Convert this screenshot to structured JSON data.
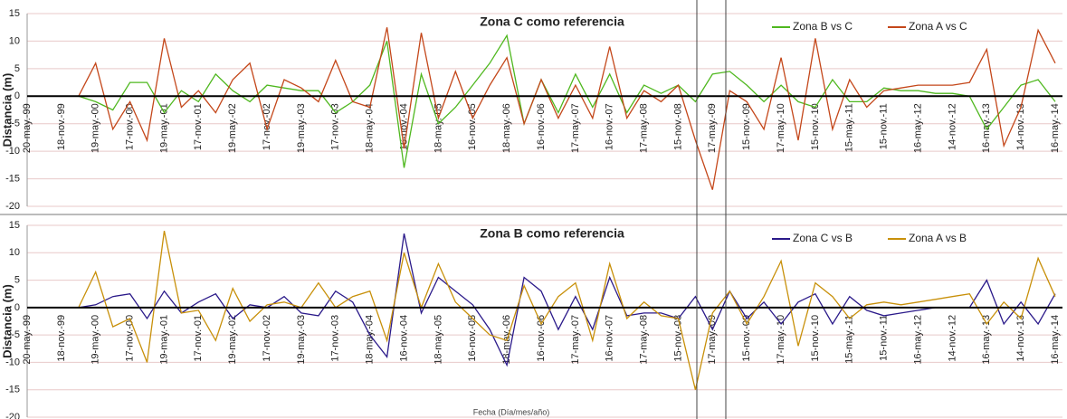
{
  "chart_data": [
    {
      "type": "line",
      "title": "Zona C como referencia",
      "ylabel": "Distancia (m)",
      "categories": [
        "20-may.-99",
        null,
        "18-nov.-99",
        null,
        "19-may.-00",
        null,
        "17-nov.-00",
        null,
        "19-may.-01",
        null,
        "17-nov.-01",
        null,
        "19-may.-02",
        null,
        "17-nov.-02",
        null,
        "19-may.-03",
        null,
        "17-nov.-03",
        null,
        "18-may.-04",
        null,
        "16-nov.-04",
        null,
        "18-may.-05",
        null,
        "16-nov.-05",
        null,
        "18-may.-06",
        null,
        "16-nov.-06",
        null,
        "17-may.-07",
        null,
        "16-nov.-07",
        null,
        "17-may.-08",
        null,
        "15-nov.-08",
        null,
        "17-may.-09",
        null,
        "15-nov.-09",
        null,
        "17-may.-10",
        null,
        "15-nov.-10",
        null,
        "15-may.-11",
        null,
        "15-nov.-11",
        null,
        "16-may.-12",
        null,
        "14-nov.-12",
        null,
        "16-may.-13",
        null,
        "14-nov.-13",
        null,
        "16-may.-14"
      ],
      "series": [
        {
          "name": "Zona B vs C",
          "color": "#4fb81f",
          "values": [
            null,
            null,
            null,
            0,
            -1,
            -2.5,
            2.5,
            2.5,
            -3,
            1,
            -1,
            4,
            1,
            -1,
            2,
            1.5,
            1,
            1,
            -3,
            -1,
            2,
            10,
            -13,
            4,
            -5,
            -2,
            2,
            6,
            11,
            -5,
            3,
            -3,
            4,
            -2,
            4,
            -3,
            2,
            0.5,
            2,
            -1,
            4,
            4.5,
            2,
            -1,
            2,
            -1,
            -2,
            3,
            -1,
            -1,
            1.5,
            1,
            1,
            0.5,
            0.5,
            0,
            -6,
            -2,
            2,
            3,
            -1
          ]
        },
        {
          "name": "Zona A vs C",
          "color": "#c4471a",
          "values": [
            null,
            null,
            null,
            0,
            6,
            -6,
            -1,
            -8,
            10.5,
            -2,
            1,
            -3,
            3,
            6,
            -6,
            3,
            1.5,
            -1,
            6.5,
            -1,
            -2,
            12.5,
            -9.5,
            11.5,
            -4,
            4.5,
            -4,
            2,
            7,
            -5,
            3,
            -4,
            2,
            -4,
            9,
            -4,
            1,
            -1,
            2,
            -8,
            -17,
            1,
            -1,
            -6,
            7,
            -8,
            10.5,
            -6,
            3,
            -2,
            1,
            1.5,
            2,
            2,
            2,
            2.5,
            8.5,
            -9,
            -2,
            12,
            6
          ]
        }
      ],
      "ylim": [
        -20,
        15
      ],
      "yticks": [
        -20,
        -15,
        -10,
        -5,
        0,
        5,
        10,
        15
      ],
      "grid": true,
      "legend": "upper right"
    },
    {
      "type": "line",
      "title": "Zona B como referencia",
      "ylabel": "Distancia (m)",
      "xlabel": "Fecha (Día/mes/año)",
      "categories": [
        "20-may.-99",
        null,
        "18-nov.-99",
        null,
        "19-may.-00",
        null,
        "17-nov.-00",
        null,
        "19-may.-01",
        null,
        "17-nov.-01",
        null,
        "19-may.-02",
        null,
        "17-nov.-02",
        null,
        "19-may.-03",
        null,
        "17-nov.-03",
        null,
        "18-may.-04",
        null,
        "16-nov.-04",
        null,
        "18-may.-05",
        null,
        "16-nov.-05",
        null,
        "18-may.-06",
        null,
        "16-nov.-06",
        null,
        "17-may.-07",
        null,
        "16-nov.-07",
        null,
        "17-may.-08",
        null,
        "15-nov.-08",
        null,
        "17-may.-09",
        null,
        "15-nov.-09",
        null,
        "17-may.-10",
        null,
        "15-nov.-10",
        null,
        "15-may.-11",
        null,
        "15-nov.-11",
        null,
        "16-may.-12",
        null,
        "14-nov.-12",
        null,
        "16-may.-13",
        null,
        "14-nov.-13",
        null,
        "16-may.-14"
      ],
      "series": [
        {
          "name": "Zona C vs B",
          "color": "#2b1a8a",
          "values": [
            null,
            null,
            null,
            0,
            0.5,
            2,
            2.5,
            -2,
            3,
            -1,
            1,
            2.5,
            -2,
            0.5,
            0,
            2,
            -1,
            -1.5,
            3,
            1,
            -5,
            -9,
            13.5,
            -1,
            5.5,
            3,
            0.5,
            -4,
            -10.5,
            5.5,
            3,
            -4,
            2,
            -4,
            5.5,
            -1.5,
            -1,
            -1,
            -2,
            2,
            -4,
            3,
            -2,
            1,
            -3,
            1,
            2.5,
            -3,
            2,
            -0.5,
            -1.5,
            -1,
            -0.5,
            0,
            0,
            0,
            5,
            -3,
            1,
            -3,
            2.5
          ]
        },
        {
          "name": "Zona A vs B",
          "color": "#c8900a",
          "values": [
            null,
            null,
            null,
            0,
            6.5,
            -3.5,
            -2,
            -10,
            14,
            -1,
            -0.5,
            -6,
            3.5,
            -2.5,
            0.5,
            1,
            0,
            4.5,
            0,
            2,
            3,
            -6,
            10,
            0,
            8,
            1,
            -2,
            -5,
            -6,
            4,
            -3,
            2,
            4.5,
            -6,
            8,
            -2,
            1,
            -1.5,
            -2,
            -15,
            -1,
            3,
            -3,
            2,
            8.5,
            -7,
            4.5,
            2,
            -2,
            0.5,
            1,
            0.5,
            1,
            1.5,
            2,
            2.5,
            -3,
            1,
            -2,
            9,
            2
          ]
        }
      ],
      "ylim": [
        -20,
        15
      ],
      "yticks": [
        -20,
        -15,
        -10,
        -5,
        0,
        5,
        10,
        15
      ],
      "grid": true,
      "legend": "upper right"
    }
  ]
}
